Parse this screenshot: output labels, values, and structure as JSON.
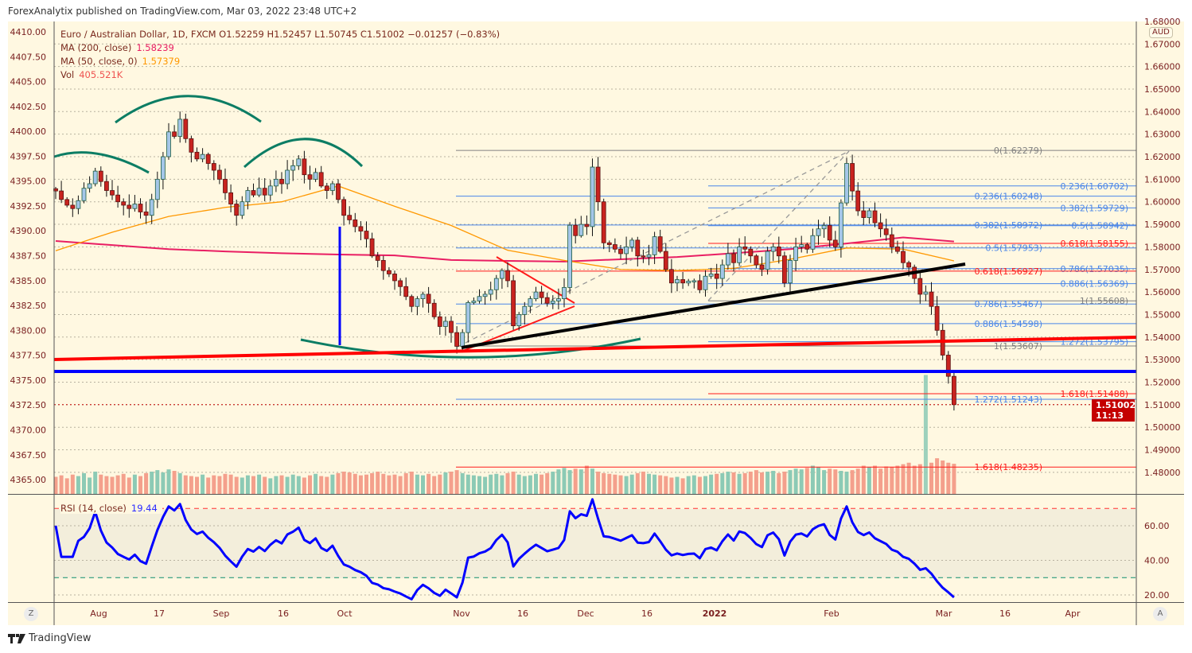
{
  "published_line": "ForexAnalytix published on TradingView.com, Mar 03, 2022 23:48 UTC+2",
  "legend": {
    "symbol_line": "Euro / Australian Dollar, 1D, FXCM  O1.52259  H1.52457  L1.50745  C1.51002  −0.01257 (−0.83%)",
    "ma200_label": "MA (200, close)",
    "ma200_value": "1.58239",
    "ma50_label": "MA (50, close, 0)",
    "ma50_value": "1.57379",
    "vol_label": "Vol",
    "vol_value": "405.521K",
    "rsi_label": "RSI (14, close)",
    "rsi_value": "19.44"
  },
  "colors": {
    "background": "#fff8e1",
    "up_candle": "#a4c6e8",
    "up_border": "#1e5e44",
    "down_candle": "#c8231f",
    "down_border": "#5a1212",
    "vol_up": "#8ccab5",
    "vol_down": "#f4a08c",
    "ma200": "#e91e63",
    "ma50": "#ff9800",
    "rsi": "#0000ff",
    "fib_blue": "#4a86e8",
    "fib_red": "#ff1a1a",
    "fib_gray": "#808080"
  },
  "currency_badge": "AUD",
  "current_price": {
    "price": "1.51002",
    "countdown": "11:13",
    "value": 1.51002
  },
  "buttons": {
    "log_scale": "Z",
    "auto_scale": "A"
  },
  "footer_brand": "TradingView",
  "chart_data": {
    "type": "candlestick",
    "title": "Euro / Australian Dollar, 1D, FXCM",
    "left_axis_ticks": [
      "4410.00",
      "4407.50",
      "4405.00",
      "4402.50",
      "4400.00",
      "4397.50",
      "4395.00",
      "4392.50",
      "4390.00",
      "4387.50",
      "4385.00",
      "4382.50",
      "4380.00",
      "4377.50",
      "4375.00",
      "4372.50",
      "4370.00",
      "4367.50",
      "4365.00"
    ],
    "price_axis_ticks": [
      "1.68000",
      "1.67000",
      "1.66000",
      "1.65000",
      "1.64000",
      "1.63000",
      "1.62000",
      "1.61000",
      "1.60000",
      "1.59000",
      "1.58000",
      "1.57000",
      "1.56000",
      "1.55000",
      "1.54000",
      "1.53000",
      "1.52000",
      "1.51000",
      "1.50000",
      "1.49000",
      "1.48000"
    ],
    "price_range": [
      1.475,
      1.685
    ],
    "time_axis_ticks": [
      "Aug",
      "17",
      "Sep",
      "16",
      "Oct",
      "Nov",
      "16",
      "Dec",
      "16",
      "2022",
      "Feb",
      "Mar",
      "16",
      "Apr"
    ],
    "last_bar": {
      "open": 1.52259,
      "high": 1.52457,
      "low": 1.50745,
      "close": 1.51002
    },
    "closes": [
      1.6048,
      1.601,
      1.5985,
      1.597,
      1.6005,
      1.606,
      1.608,
      1.6136,
      1.609,
      1.605,
      1.603,
      1.6,
      1.5985,
      1.597,
      1.599,
      1.5955,
      1.594,
      1.601,
      1.61,
      1.62,
      1.631,
      1.629,
      1.6366,
      1.628,
      1.622,
      1.619,
      1.621,
      1.617,
      1.614,
      1.61,
      1.604,
      1.599,
      1.594,
      1.6,
      1.605,
      1.603,
      1.606,
      1.603,
      1.607,
      1.61,
      1.608,
      1.614,
      1.616,
      1.619,
      1.612,
      1.61,
      1.613,
      1.607,
      1.605,
      1.608,
      1.601,
      1.594,
      1.592,
      1.589,
      1.587,
      1.5836,
      1.576,
      1.574,
      1.5695,
      1.568,
      1.565,
      1.5624,
      1.558,
      1.5536,
      1.557,
      1.559,
      1.555,
      1.549,
      1.5447,
      1.547,
      1.542,
      1.5359,
      1.542,
      1.5553,
      1.556,
      1.558,
      1.559,
      1.561,
      1.566,
      1.5695,
      1.565,
      1.545,
      1.55,
      1.5536,
      1.557,
      1.56,
      1.5575,
      1.555,
      1.556,
      1.557,
      1.562,
      1.5896,
      1.585,
      1.59,
      1.589,
      1.6154,
      1.6,
      1.5818,
      1.581,
      1.579,
      1.577,
      1.58,
      1.583,
      1.576,
      1.5755,
      1.5765,
      1.5845,
      1.578,
      1.57,
      1.564,
      1.5655,
      1.564,
      1.5648,
      1.565,
      1.561,
      1.567,
      1.568,
      1.566,
      1.572,
      1.577,
      1.573,
      1.58,
      1.579,
      1.576,
      1.572,
      1.57,
      1.578,
      1.58,
      1.576,
      1.564,
      1.574,
      1.58,
      1.581,
      1.579,
      1.585,
      1.588,
      1.5895,
      1.583,
      1.58,
      1.5995,
      1.617,
      1.6048,
      1.596,
      1.593,
      1.596,
      1.5907,
      1.588,
      1.5854,
      1.58,
      1.578,
      1.573,
      1.571,
      1.566,
      1.559,
      1.56,
      1.5536,
      1.543,
      1.532,
      1.52259,
      1.51002
    ],
    "volumes_k": [
      230,
      250,
      210,
      260,
      240,
      280,
      220,
      300,
      260,
      240,
      230,
      250,
      270,
      220,
      260,
      240,
      280,
      300,
      320,
      290,
      330,
      310,
      280,
      250,
      240,
      230,
      260,
      220,
      250,
      240,
      270,
      260,
      230,
      220,
      250,
      240,
      260,
      230,
      210,
      240,
      250,
      230,
      260,
      240,
      220,
      250,
      270,
      240,
      230,
      260,
      280,
      300,
      290,
      270,
      250,
      260,
      280,
      300,
      270,
      250,
      260,
      240,
      280,
      300,
      260,
      250,
      270,
      240,
      260,
      290,
      300,
      320,
      280,
      260,
      250,
      240,
      230,
      260,
      270,
      250,
      280,
      300,
      260,
      240,
      250,
      270,
      260,
      280,
      300,
      330,
      350,
      320,
      340,
      330,
      380,
      340,
      300,
      280,
      270,
      260,
      250,
      240,
      260,
      280,
      300,
      270,
      260,
      250,
      240,
      220,
      230,
      210,
      240,
      250,
      230,
      240,
      260,
      270,
      280,
      300,
      290,
      270,
      280,
      300,
      320,
      290,
      300,
      310,
      280,
      300,
      320,
      340,
      330,
      350,
      380,
      360,
      320,
      340,
      330,
      310,
      300,
      320,
      340,
      380,
      360,
      380,
      340,
      370,
      360,
      380,
      400,
      420,
      380,
      400,
      1600,
      420,
      480,
      450,
      420,
      405.521
    ],
    "ma200_samples": {
      "bar_step": 10,
      "values": [
        1.5826,
        1.5808,
        1.579,
        1.578,
        1.5772,
        1.5766,
        1.5762,
        1.5742,
        1.5738,
        1.5735,
        1.5745,
        1.5755,
        1.5772,
        1.579,
        1.5815,
        1.5842,
        1.58239
      ]
    },
    "ma50_samples": {
      "bar_step": 10,
      "values": [
        1.5783,
        1.5865,
        1.5935,
        1.5975,
        1.6,
        1.607,
        1.598,
        1.5895,
        1.5785,
        1.574,
        1.57,
        1.5695,
        1.5705,
        1.5745,
        1.5795,
        1.579,
        1.57379
      ]
    },
    "rsi": {
      "period": 14,
      "overbought": 70,
      "oversold": 30,
      "ticks": [
        "60.00",
        "40.00",
        "20.00"
      ],
      "last": 19.44
    },
    "fib_levels": [
      {
        "set": "A",
        "label": "0(1.62279)",
        "price": 1.62279,
        "color": "gray"
      },
      {
        "set": "B",
        "label": "0.236(1.60702)",
        "price": 1.60702,
        "color": "blue"
      },
      {
        "set": "A",
        "label": "0.236(1.60248)",
        "price": 1.60248,
        "color": "blue"
      },
      {
        "set": "B",
        "label": "0.382(1.59729)",
        "price": 1.59729,
        "color": "blue"
      },
      {
        "set": "A",
        "label": "0.382(1.58972)",
        "price": 1.58972,
        "color": "blue"
      },
      {
        "set": "B",
        "label": "0.5(1.58942)",
        "price": 1.58942,
        "color": "blue"
      },
      {
        "set": "B",
        "label": "0.618(1.58155)",
        "price": 1.58155,
        "color": "red"
      },
      {
        "set": "A",
        "label": "0.5(1.57953)",
        "price": 1.57953,
        "color": "blue"
      },
      {
        "set": "B",
        "label": "0.786(1.57035)",
        "price": 1.57035,
        "color": "blue"
      },
      {
        "set": "A",
        "label": "0.618(1.56927)",
        "price": 1.56927,
        "color": "red"
      },
      {
        "set": "B",
        "label": "0.886(1.56369)",
        "price": 1.56369,
        "color": "blue"
      },
      {
        "set": "B",
        "label": "1(1.55608)",
        "price": 1.55608,
        "color": "gray"
      },
      {
        "set": "A",
        "label": "0.786(1.55467)",
        "price": 1.55467,
        "color": "blue"
      },
      {
        "set": "A",
        "label": "0.886(1.54598)",
        "price": 1.54598,
        "color": "blue"
      },
      {
        "set": "B",
        "label": "1.272(1.53795)",
        "price": 1.53795,
        "color": "blue"
      },
      {
        "set": "A",
        "label": "1(1.53607)",
        "price": 1.53607,
        "color": "gray"
      },
      {
        "set": "B",
        "label": "1.618(1.51488)",
        "price": 1.51488,
        "color": "red"
      },
      {
        "set": "A",
        "label": "1.272(1.51243)",
        "price": 1.51243,
        "color": "blue"
      },
      {
        "set": "A",
        "label": "1.618(1.48235)",
        "price": 1.48235,
        "color": "red"
      }
    ]
  }
}
